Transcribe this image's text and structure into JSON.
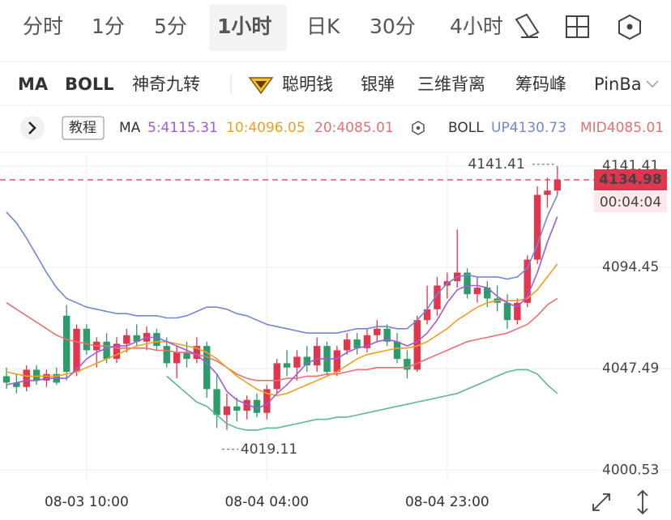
{
  "tabs": [
    "分时",
    "1分",
    "5分",
    "1小时",
    "日K",
    "30分",
    "4小时"
  ],
  "active_tab": 3,
  "indicator_tabs": [
    "MA",
    "BOLL",
    "神奇九转",
    "聪明钱",
    "银弹",
    "三维背离",
    "筹码峰",
    "PinBar"
  ],
  "legend": {
    "tutorial": "教程",
    "ma": "MA",
    "ma5": "5:4115.31",
    "ma10": "10:4096.05",
    "ma20": "20:4085.01",
    "boll": "BOLL",
    "up": "UP4130.73",
    "mid": "MID4085.01"
  },
  "chart_data": {
    "type": "candlestick",
    "categories": [
      null,
      null,
      null,
      null,
      null,
      null,
      null,
      null,
      "08-03 10:00",
      null,
      null,
      null,
      null,
      null,
      null,
      null,
      null,
      null,
      null,
      null,
      null,
      null,
      null,
      null,
      null,
      null,
      "08-04 04:00",
      null,
      null,
      null,
      null,
      null,
      null,
      null,
      null,
      null,
      null,
      null,
      null,
      null,
      null,
      null,
      null,
      null,
      "08-04 23:00",
      null,
      null,
      null,
      null,
      null,
      null,
      null,
      null,
      null,
      null,
      null
    ],
    "open": [
      4044,
      4041,
      4039,
      4047,
      4042,
      4045,
      4072,
      4046,
      4066,
      4056,
      4060,
      4052,
      4059,
      4063,
      4060,
      4064,
      4058,
      4050,
      4055,
      4052,
      4058,
      4038,
      4026,
      4030,
      4028,
      4033,
      4027,
      4038,
      4050,
      4048,
      4053,
      4049,
      4058,
      4046,
      4056,
      4061,
      4057,
      4063,
      4066,
      4060,
      4052,
      4047,
      4070,
      4075,
      4086,
      4088,
      4092,
      4082,
      4085,
      4080,
      4078,
      4070,
      4078,
      4098,
      4128,
      4130
    ],
    "high": [
      4048,
      4045,
      4049,
      4049,
      4047,
      4048,
      4077,
      4068,
      4068,
      4062,
      4064,
      4062,
      4066,
      4068,
      4067,
      4066,
      4062,
      4058,
      4060,
      4062,
      4060,
      4045,
      4036,
      4034,
      4035,
      4036,
      4040,
      4052,
      4056,
      4056,
      4058,
      4062,
      4060,
      4058,
      4064,
      4064,
      4066,
      4070,
      4068,
      4064,
      4056,
      4072,
      4086,
      4090,
      4092,
      4112,
      4094,
      4090,
      4088,
      4086,
      4082,
      4080,
      4100,
      4132,
      4136,
      4141.41
    ],
    "low": [
      4038,
      4036,
      4037,
      4040,
      4039,
      4040,
      4042,
      4044,
      4054,
      4048,
      4050,
      4050,
      4055,
      4058,
      4056,
      4056,
      4048,
      4043,
      4048,
      4050,
      4034,
      4020,
      4019.11,
      4023,
      4024,
      4025,
      4024,
      4036,
      4044,
      4042,
      4046,
      4046,
      4044,
      4044,
      4054,
      4054,
      4055,
      4060,
      4058,
      4050,
      4043,
      4046,
      4068,
      4072,
      4080,
      4085,
      4080,
      4078,
      4076,
      4074,
      4066,
      4068,
      4076,
      4096,
      4122,
      4128
    ],
    "close": [
      4041,
      4039,
      4047,
      4042,
      4045,
      4041,
      4046,
      4066,
      4056,
      4060,
      4052,
      4059,
      4063,
      4060,
      4064,
      4058,
      4050,
      4055,
      4052,
      4058,
      4038,
      4026,
      4030,
      4028,
      4033,
      4027,
      4038,
      4050,
      4048,
      4053,
      4049,
      4058,
      4046,
      4056,
      4061,
      4057,
      4063,
      4066,
      4060,
      4052,
      4047,
      4070,
      4075,
      4086,
      4088,
      4092,
      4082,
      4085,
      4080,
      4078,
      4070,
      4078,
      4098,
      4128,
      4130,
      4134.98
    ],
    "up_color": "#e0364e",
    "down_color": "#2e9b6a",
    "overlays": [
      {
        "color": "#7486d8",
        "values": [
          4120,
          4115,
          4108,
          4100,
          4092,
          4085,
          4080,
          4078,
          4076,
          4075,
          4074,
          4073,
          4073,
          4072,
          4072,
          4072,
          4071,
          4071,
          4072,
          4074,
          4076,
          4076,
          4075,
          4073,
          4072,
          4070,
          4068,
          4067,
          4066,
          4065,
          4064,
          4064,
          4064,
          4064,
          4065,
          4066,
          4066,
          4067,
          4067,
          4066,
          4066,
          4070,
          4075,
          4082,
          4087,
          4090,
          4091,
          4090,
          4090,
          4090,
          4089,
          4090,
          4094,
          4105,
          4118,
          4128
        ]
      },
      {
        "color": "#ea7070",
        "values": [
          4078,
          4075,
          4072,
          4069,
          4066,
          4063,
          4061,
          4060,
          4059,
          4058,
          4058,
          4057,
          4057,
          4057,
          4057,
          4056,
          4056,
          4055,
          4055,
          4054,
          4053,
          4051,
          4048,
          4045,
          4043,
          4042,
          4042,
          4042,
          4043,
          4043,
          4044,
          4044,
          4045,
          4045,
          4046,
          4047,
          4047,
          4048,
          4048,
          4048,
          4048,
          4050,
          4052,
          4054,
          4056,
          4058,
          4060,
          4061,
          4062,
          4063,
          4064,
          4066,
          4068,
          4072,
          4077,
          4080
        ]
      },
      {
        "color": "#5db88a",
        "values": [
          null,
          null,
          null,
          null,
          null,
          null,
          null,
          null,
          null,
          null,
          null,
          null,
          null,
          null,
          null,
          null,
          4044,
          4040,
          4036,
          4032,
          4030,
          4026,
          4022,
          4020,
          4019,
          4019,
          4020,
          4020,
          4021,
          4022,
          4023,
          4024,
          4024,
          4025,
          4025,
          4026,
          4027,
          4028,
          4029,
          4030,
          4031,
          4032,
          4033,
          4034,
          4035,
          4036,
          4038,
          4040,
          4042,
          4044,
          4046,
          4047,
          4047,
          4045,
          4040,
          4036
        ]
      },
      {
        "color": "#f0a020",
        "values": [
          4046,
          4045,
          4044,
          4044,
          4044,
          4044,
          4045,
          4046,
          4048,
          4050,
          4052,
          4054,
          4056,
          4058,
          4059,
          4060,
          4060,
          4059,
          4058,
          4057,
          4055,
          4052,
          4048,
          4044,
          4041,
          4038,
          4036,
          4035,
          4036,
          4038,
          4040,
          4042,
          4044,
          4046,
          4049,
          4052,
          4054,
          4055,
          4056,
          4057,
          4057,
          4058,
          4060,
          4063,
          4066,
          4070,
          4073,
          4076,
          4078,
          4079,
          4079,
          4079,
          4080,
          4084,
          4090,
          4096
        ]
      },
      {
        "color": "#a25ad9",
        "values": [
          4040,
          4041,
          4042,
          4042,
          4043,
          4043,
          4043,
          4047,
          4052,
          4055,
          4057,
          4058,
          4058,
          4060,
          4062,
          4062,
          4060,
          4058,
          4056,
          4054,
          4050,
          4045,
          4037,
          4033,
          4031,
          4029,
          4031,
          4036,
          4040,
          4045,
          4050,
          4052,
          4052,
          4052,
          4055,
          4057,
          4058,
          4060,
          4061,
          4060,
          4058,
          4060,
          4064,
          4070,
          4078,
          4084,
          4086,
          4086,
          4085,
          4081,
          4078,
          4076,
          4081,
          4092,
          4106,
          4118
        ]
      }
    ],
    "ylim": [
      3995,
      4147
    ],
    "yticks": [
      4141.41,
      4094.45,
      4047.49,
      4000.53
    ],
    "countdown": "00:04:04",
    "grid": true
  }
}
